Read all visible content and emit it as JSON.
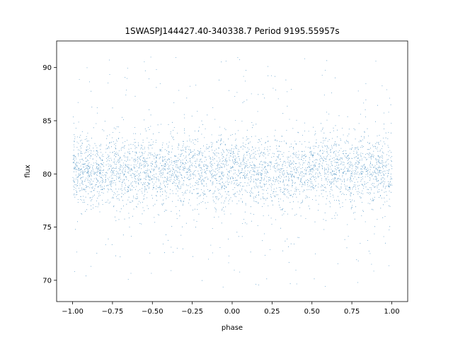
{
  "chart_data": {
    "type": "scatter",
    "title": "1SWASPJ144427.40-340338.7 Period 9195.55957s",
    "xlabel": "phase",
    "ylabel": "flux",
    "xlim": [
      -1.1,
      1.1
    ],
    "ylim": [
      68.0,
      92.5
    ],
    "x_ticks": [
      -1.0,
      -0.75,
      -0.5,
      -0.25,
      0.0,
      0.25,
      0.5,
      0.75,
      1.0
    ],
    "x_tick_labels": [
      "−1.00",
      "−0.75",
      "−0.50",
      "−0.25",
      "0.00",
      "0.25",
      "0.50",
      "0.75",
      "1.00"
    ],
    "y_ticks": [
      70,
      75,
      80,
      85,
      90
    ],
    "y_tick_labels": [
      "70",
      "75",
      "80",
      "85",
      "90"
    ],
    "grid": false,
    "series": [
      {
        "color": "#1f77b4",
        "phase_range": [
          -1.0,
          1.0
        ],
        "flux_center": 80.3,
        "flux_spread": 1.6,
        "flux_min": 69.3,
        "flux_max": 91.2
      }
    ]
  }
}
